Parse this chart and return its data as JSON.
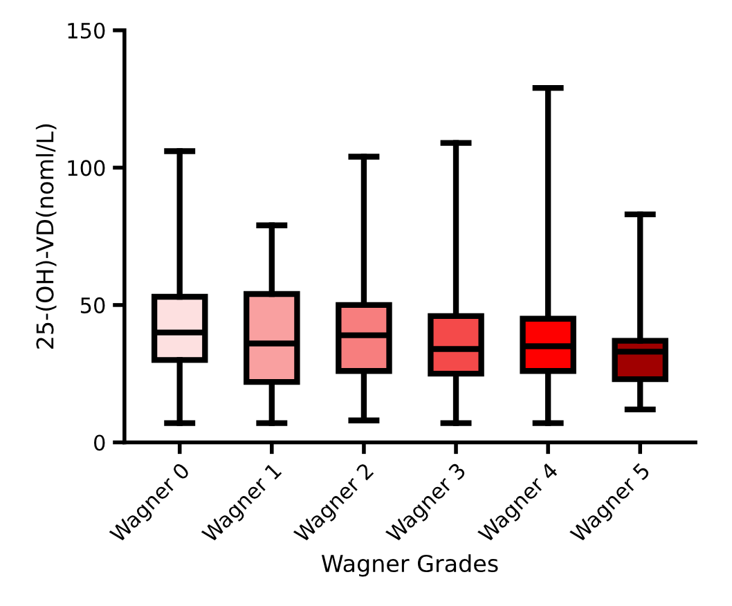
{
  "chart_data": {
    "type": "box",
    "xlabel": "Wagner Grades",
    "ylabel": "25-(OH)-VD(noml/L)",
    "categories": [
      "Wagner 0",
      "Wagner 1",
      "Wagner 2",
      "Wagner 3",
      "Wagner 4",
      "Wagner 5"
    ],
    "colors": [
      "#fde0e0",
      "#f9a0a0",
      "#f77e7e",
      "#f44a4a",
      "#fe0000",
      "#a00000"
    ],
    "boxes": [
      {
        "low": 7,
        "q1": 30,
        "median": 40,
        "q3": 53,
        "high": 106
      },
      {
        "low": 7,
        "q1": 22,
        "median": 36,
        "q3": 54,
        "high": 79
      },
      {
        "low": 8,
        "q1": 26,
        "median": 39,
        "q3": 50,
        "high": 104
      },
      {
        "low": 7,
        "q1": 25,
        "median": 34,
        "q3": 46,
        "high": 109
      },
      {
        "low": 7,
        "q1": 26,
        "median": 35,
        "q3": 45,
        "high": 129
      },
      {
        "low": 12,
        "q1": 23,
        "median": 33,
        "q3": 37,
        "high": 83
      }
    ],
    "ylim": [
      0,
      150
    ],
    "yticks": [
      0,
      50,
      100,
      150
    ],
    "grid": false
  }
}
